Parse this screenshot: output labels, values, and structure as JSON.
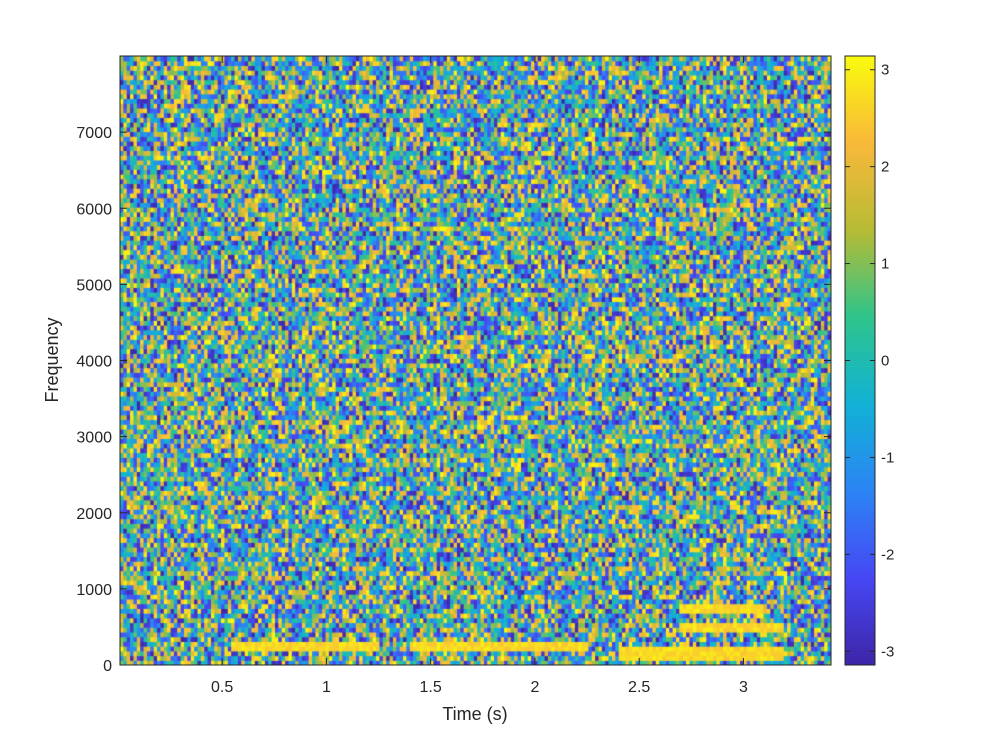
{
  "chart_data": {
    "type": "heatmap",
    "title": "",
    "xlabel": "Time (s)",
    "ylabel": "Frequency",
    "xlim": [
      0.01,
      3.42
    ],
    "ylim": [
      0,
      8000
    ],
    "x_ticks": [
      0.5,
      1,
      1.5,
      2,
      2.5,
      3
    ],
    "x_tick_labels": [
      "0.5",
      "1",
      "1.5",
      "2",
      "2.5",
      "3"
    ],
    "y_ticks": [
      0,
      1000,
      2000,
      3000,
      4000,
      5000,
      6000,
      7000
    ],
    "y_tick_labels": [
      "0",
      "1000",
      "2000",
      "3000",
      "4000",
      "5000",
      "6000",
      "7000"
    ],
    "colorbar": {
      "colormap": "parula",
      "clim": [
        -3.14159,
        3.14159
      ],
      "ticks": [
        -3,
        -2,
        -1,
        0,
        1,
        2,
        3
      ],
      "tick_labels": [
        "-3",
        "-2",
        "-1",
        "0",
        "1",
        "2",
        "3"
      ]
    },
    "grid": {
      "time_bins": 211,
      "freq_bins": 129
    },
    "description_of_values": "phase angle in radians, mostly random across the plane with banded harmonic structure below about 1500 Hz",
    "low_frequency_bands": [
      {
        "t_start": 0.55,
        "t_end": 1.25,
        "f": 250
      },
      {
        "t_start": 1.4,
        "t_end": 2.25,
        "f": 250
      },
      {
        "t_start": 2.4,
        "t_end": 3.2,
        "f": 150
      },
      {
        "t_start": 2.7,
        "t_end": 3.2,
        "f": 500
      },
      {
        "t_start": 2.7,
        "t_end": 3.1,
        "f": 750
      }
    ],
    "colors": {
      "axes": "#262626",
      "colormap_stops": [
        "#3e26a8",
        "#4748f5",
        "#2c85f4",
        "#12b2d6",
        "#2fc58c",
        "#b8bc35",
        "#f9b93b",
        "#f9fb0e"
      ]
    }
  }
}
